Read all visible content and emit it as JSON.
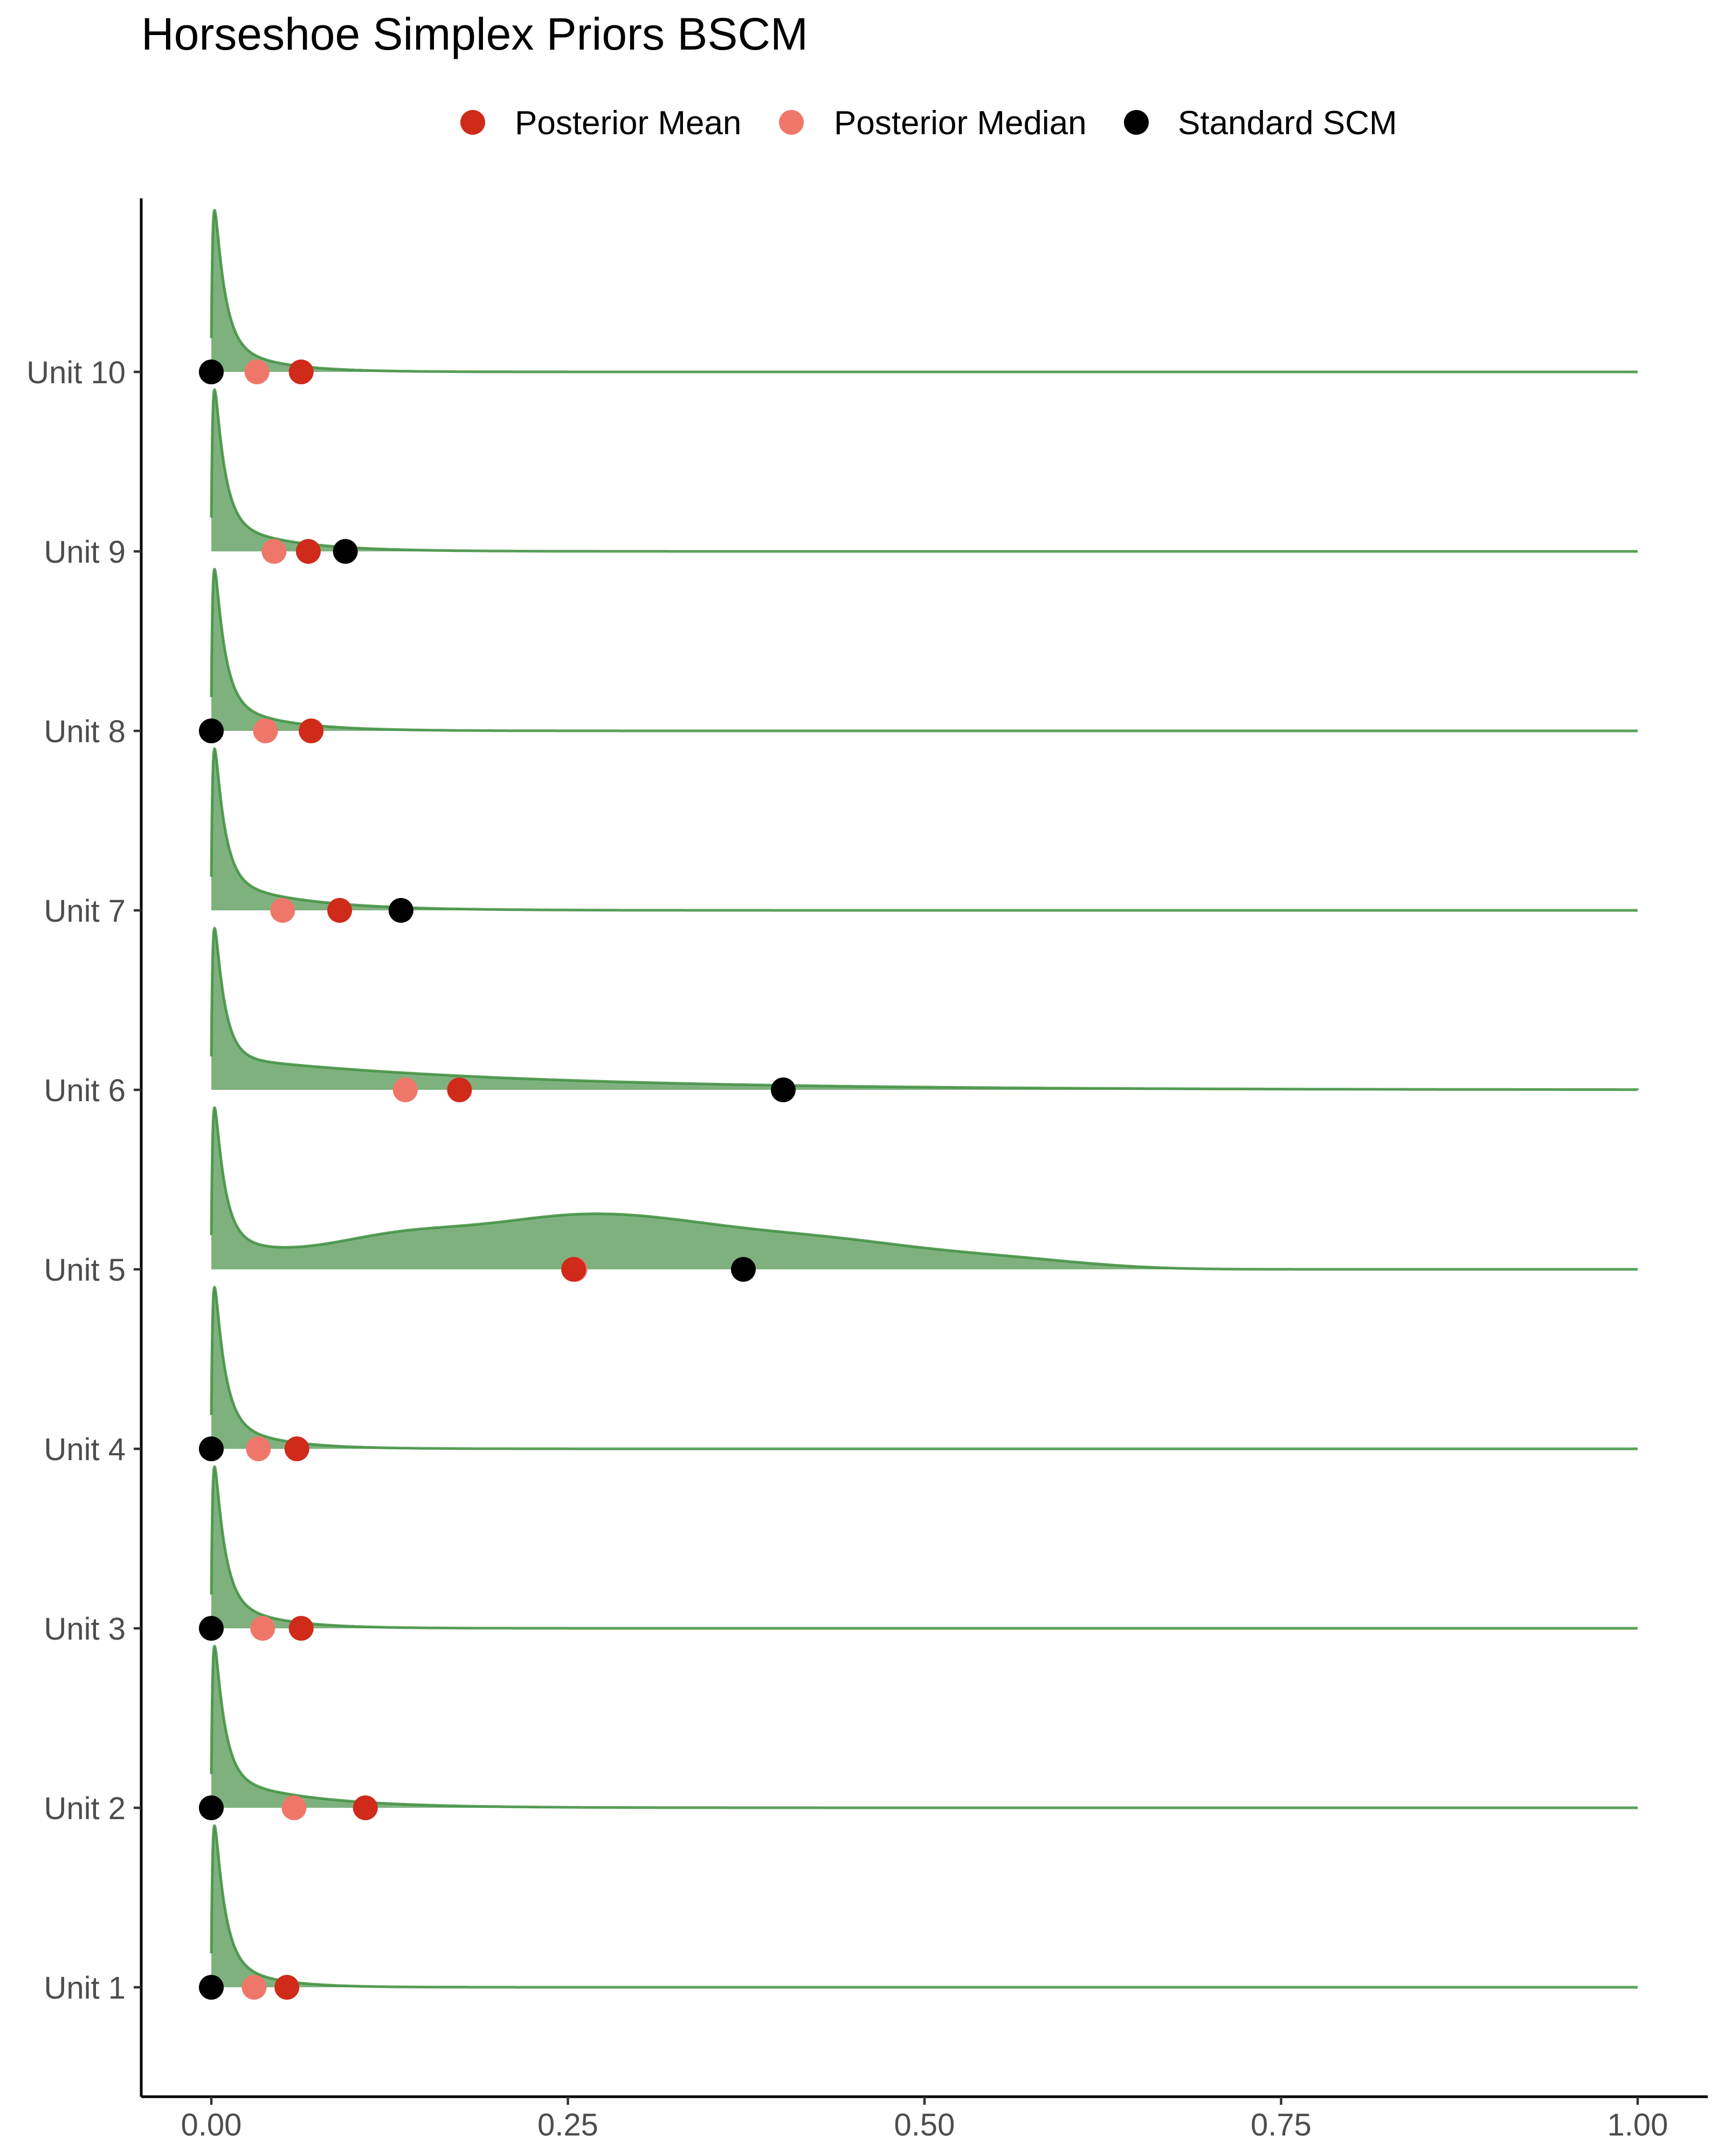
{
  "colors": {
    "density_fill": "#7fb17f",
    "density_line": "#3f8f3f",
    "posterior_mean": "#cf2a1a",
    "posterior_median": "#ef776a",
    "standard_scm": "#000000",
    "axis": "#000000",
    "tick_text": "#4d4d4d"
  },
  "chart_data": {
    "type": "ridgeline",
    "title": "Horseshoe Simplex Priors BSCM",
    "xlabel": "",
    "ylabel": "",
    "xlim": [
      0,
      1
    ],
    "x_ticks": [
      {
        "value": 0.0,
        "label": "0.00"
      },
      {
        "value": 0.25,
        "label": "0.25"
      },
      {
        "value": 0.5,
        "label": "0.50"
      },
      {
        "value": 0.75,
        "label": "0.75"
      },
      {
        "value": 1.0,
        "label": "1.00"
      }
    ],
    "legend": {
      "position": "top",
      "entries": [
        {
          "name": "Posterior Mean",
          "color": "#cf2a1a"
        },
        {
          "name": "Posterior Median",
          "color": "#ef776a"
        },
        {
          "name": "Standard SCM",
          "color": "#000000"
        }
      ]
    },
    "units": [
      {
        "label": "Unit 1",
        "posterior_mean": 0.053,
        "posterior_median": 0.03,
        "standard_scm": 0.0,
        "density_tail": 0.03,
        "density_bump": 0.0
      },
      {
        "label": "Unit 2",
        "posterior_mean": 0.108,
        "posterior_median": 0.058,
        "standard_scm": 0.0,
        "density_tail": 0.06,
        "density_bump": 0.0
      },
      {
        "label": "Unit 3",
        "posterior_mean": 0.063,
        "posterior_median": 0.036,
        "standard_scm": 0.0,
        "density_tail": 0.035,
        "density_bump": 0.0
      },
      {
        "label": "Unit 4",
        "posterior_mean": 0.06,
        "posterior_median": 0.033,
        "standard_scm": 0.0,
        "density_tail": 0.035,
        "density_bump": 0.0
      },
      {
        "label": "Unit 5",
        "posterior_mean": 0.254,
        "posterior_median": 0.255,
        "standard_scm": 0.373,
        "density_tail": 0.06,
        "density_bump": 1.0
      },
      {
        "label": "Unit 6",
        "posterior_mean": 0.174,
        "posterior_median": 0.136,
        "standard_scm": 0.401,
        "density_tail": 0.2,
        "density_bump": 0.0
      },
      {
        "label": "Unit 7",
        "posterior_mean": 0.09,
        "posterior_median": 0.05,
        "standard_scm": 0.133,
        "density_tail": 0.055,
        "density_bump": 0.0
      },
      {
        "label": "Unit 8",
        "posterior_mean": 0.07,
        "posterior_median": 0.038,
        "standard_scm": 0.0,
        "density_tail": 0.04,
        "density_bump": 0.0
      },
      {
        "label": "Unit 9",
        "posterior_mean": 0.068,
        "posterior_median": 0.044,
        "standard_scm": 0.094,
        "density_tail": 0.045,
        "density_bump": 0.0
      },
      {
        "label": "Unit 10",
        "posterior_mean": 0.063,
        "posterior_median": 0.032,
        "standard_scm": 0.0,
        "density_tail": 0.035,
        "density_bump": 0.0
      }
    ]
  }
}
